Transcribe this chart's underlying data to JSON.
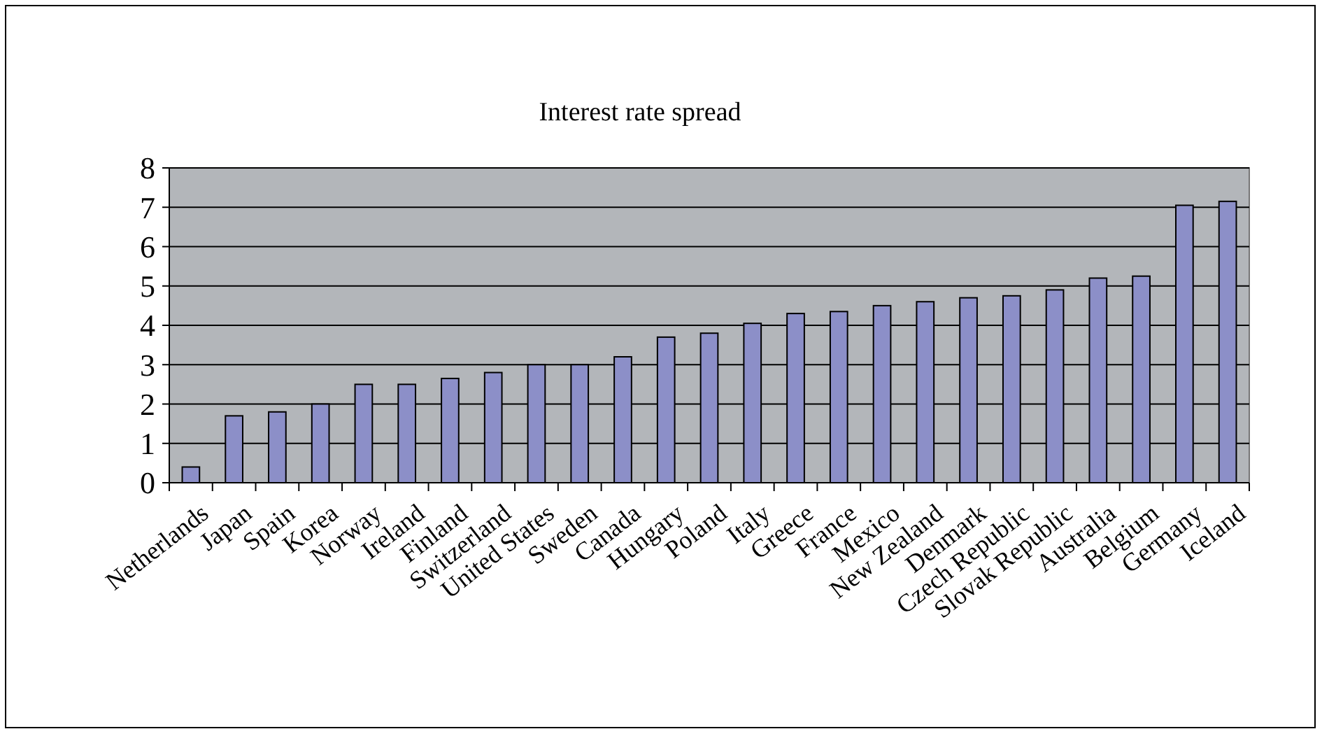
{
  "chart_data": {
    "type": "bar",
    "title": "Interest rate spread",
    "categories": [
      "Netherlands",
      "Japan",
      "Spain",
      "Korea",
      "Norway",
      "Ireland",
      "Finland",
      "Switzerland",
      "United States",
      "Sweden",
      "Canada",
      "Hungary",
      "Poland",
      "Italy",
      "Greece",
      "France",
      "Mexico",
      "New Zealand",
      "Denmark",
      "Czech Republic",
      "Slovak Republic",
      "Australia",
      "Belgium",
      "Germany",
      "Iceland"
    ],
    "values": [
      0.4,
      1.7,
      1.8,
      2.0,
      2.5,
      2.5,
      2.65,
      2.8,
      3.0,
      3.0,
      3.2,
      3.7,
      3.8,
      4.05,
      4.3,
      4.35,
      4.5,
      4.6,
      4.7,
      4.75,
      4.9,
      5.2,
      5.25,
      7.05,
      7.15
    ],
    "color": "#8c8fc8",
    "ylim": [
      0,
      8
    ],
    "yticks": [
      0,
      1,
      2,
      3,
      4,
      5,
      6,
      7,
      8
    ],
    "grid": "y"
  }
}
